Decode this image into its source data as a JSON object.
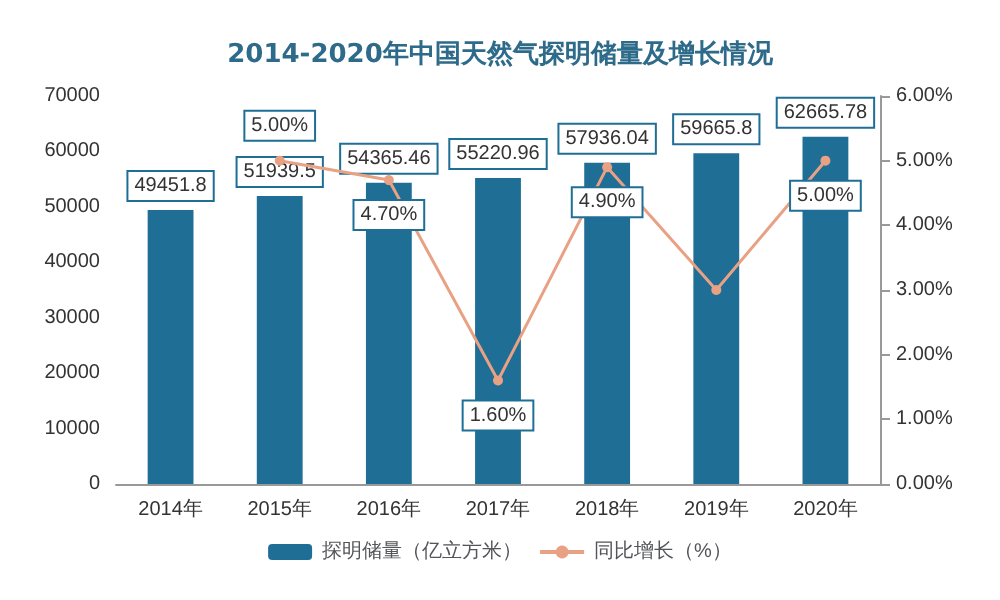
{
  "chart_data": {
    "type": "bar",
    "title": "2014-2020年中国天然气探明储量及增长情况",
    "categories": [
      "2014年",
      "2015年",
      "2016年",
      "2017年",
      "2018年",
      "2019年",
      "2020年"
    ],
    "series": [
      {
        "name": "探明储量（亿立方米）",
        "color": "#1f6e96",
        "values": [
          49451.8,
          51939.5,
          54365.46,
          55220.96,
          57936.04,
          59665.8,
          62665.78
        ],
        "data_labels": true
      },
      {
        "name": "同比增长（%）",
        "type": "line",
        "axis": "y2",
        "color": "#e9a184",
        "marker": "circle",
        "values": [
          null,
          5.0,
          4.7,
          1.6,
          4.9,
          3.0,
          5.0
        ],
        "value_labels": [
          null,
          "5.00%",
          "4.70%",
          "1.60%",
          "4.90%",
          null,
          "5.00%"
        ]
      }
    ],
    "ylim": [
      0,
      70000
    ],
    "yticks": [
      0,
      10000,
      20000,
      30000,
      40000,
      50000,
      60000,
      70000
    ],
    "y2lim": [
      0,
      6
    ],
    "y2ticks": [
      {
        "value": 0,
        "label": "0.00%"
      },
      {
        "value": 1,
        "label": "1.00%"
      },
      {
        "value": 2,
        "label": "2.00%"
      },
      {
        "value": 3,
        "label": "3.00%"
      },
      {
        "value": 4,
        "label": "4.00%"
      },
      {
        "value": 5,
        "label": "5.00%"
      },
      {
        "value": 6,
        "label": "6.00%"
      }
    ],
    "grid": false,
    "legend": "bottom"
  }
}
